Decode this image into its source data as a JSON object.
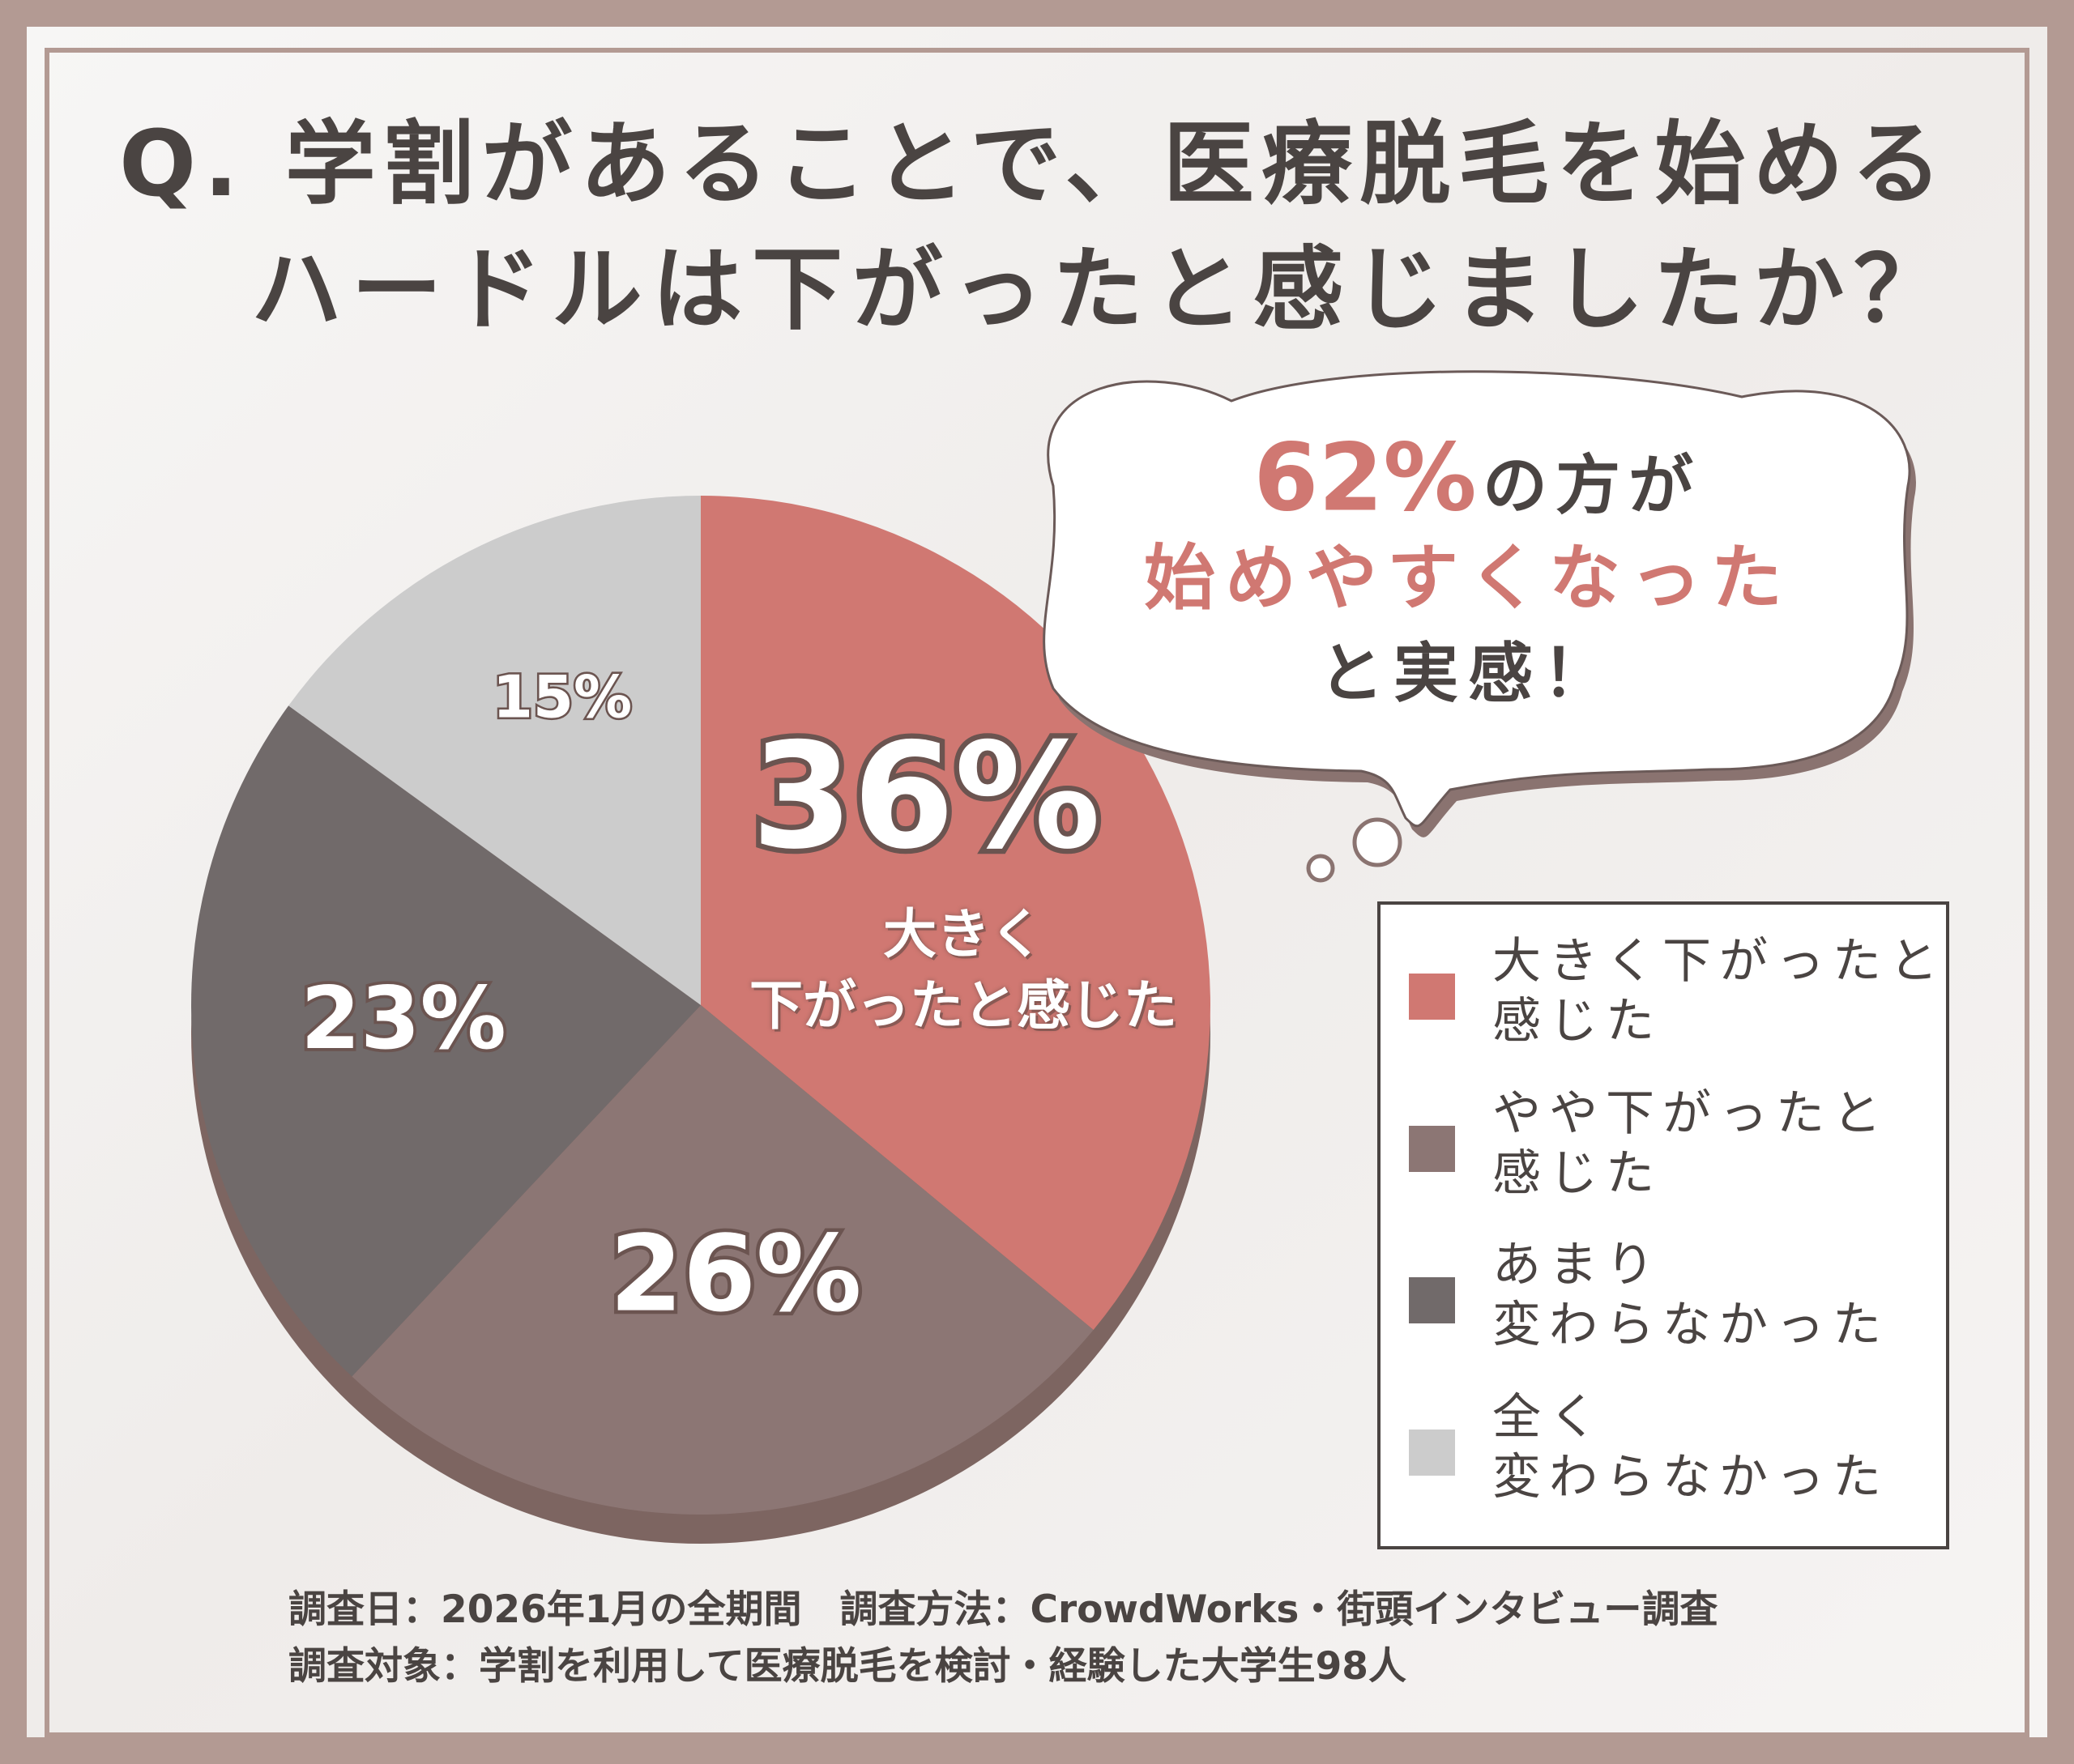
{
  "chart_data": {
    "type": "pie",
    "title": [
      "Q. 学割があることで、医療脱毛を始める",
      "ハードルは下がったと感じましたか？"
    ],
    "categories": [
      "大きく下がったと\n感じた",
      "やや下がったと\n感じた",
      "あまり\n変わらなかった",
      "全く\n変わらなかった"
    ],
    "series": [
      {
        "values": [
          36,
          26,
          23,
          15
        ],
        "value_labels": [
          "36%",
          "26%",
          "23%",
          "15%"
        ],
        "colors": [
          "#d07872",
          "#8c7674",
          "#716a6a",
          "#cccccc"
        ]
      }
    ],
    "slice_annotation": "大きく\n下がったと感じた",
    "callout": {
      "highlight": "62%",
      "line1_rest": "の方が",
      "line2": "始めやすくなった",
      "line3": "と実感！"
    },
    "footnotes": [
      "調査日：2026年1月の全期間　調査方法：CrowdWorks・街頭インタビュー調査",
      "調査対象：学割を利用して医療脱毛を検討・経験した大学生98人"
    ],
    "legend": "right"
  }
}
